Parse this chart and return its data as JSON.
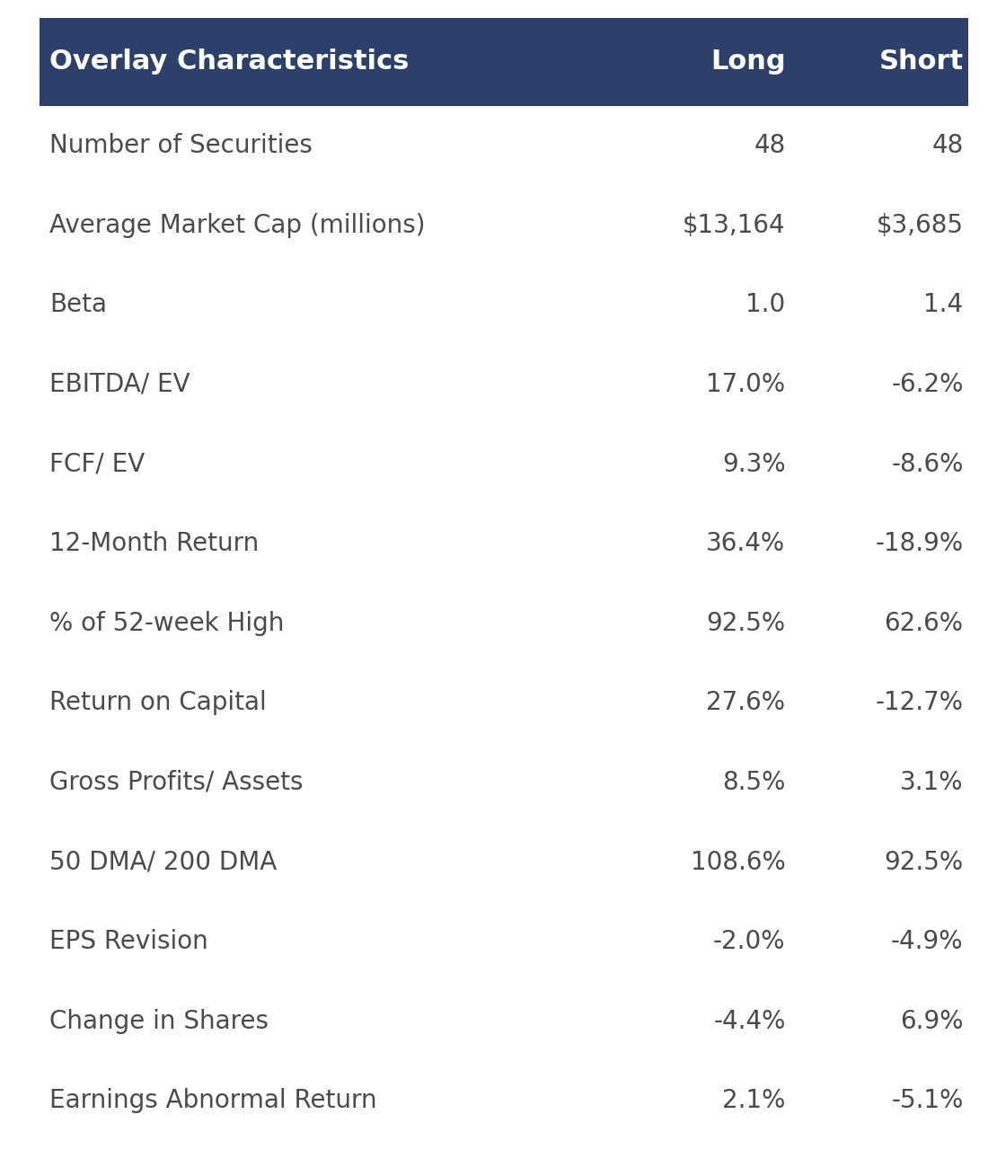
{
  "header": [
    "Overlay Characteristics",
    "Long",
    "Short"
  ],
  "rows": [
    [
      "Number of Securities",
      "48",
      "48"
    ],
    [
      "Average Market Cap (millions)",
      "$13,164",
      "$3,685"
    ],
    [
      "Beta",
      "1.0",
      "1.4"
    ],
    [
      "EBITDA/ EV",
      "17.0%",
      "-6.2%"
    ],
    [
      "FCF/ EV",
      "9.3%",
      "-8.6%"
    ],
    [
      "12-Month Return",
      "36.4%",
      "-18.9%"
    ],
    [
      "% of 52-week High",
      "92.5%",
      "62.6%"
    ],
    [
      "Return on Capital",
      "27.6%",
      "-12.7%"
    ],
    [
      "Gross Profits/ Assets",
      "8.5%",
      "3.1%"
    ],
    [
      "50 DMA/ 200 DMA",
      "108.6%",
      "92.5%"
    ],
    [
      "EPS Revision",
      "-2.0%",
      "-4.9%"
    ],
    [
      "Change in Shares",
      "-4.4%",
      "6.9%"
    ],
    [
      "Earnings Abnormal Return",
      "2.1%",
      "-5.1%"
    ]
  ],
  "header_bg_color": "#2d3f6b",
  "header_text_color": "#ffffff",
  "row_text_color": "#4a4a4a",
  "bg_color": "#ffffff",
  "header_fontsize": 22,
  "row_fontsize": 20,
  "fig_width": 11.0,
  "fig_height": 13.09
}
